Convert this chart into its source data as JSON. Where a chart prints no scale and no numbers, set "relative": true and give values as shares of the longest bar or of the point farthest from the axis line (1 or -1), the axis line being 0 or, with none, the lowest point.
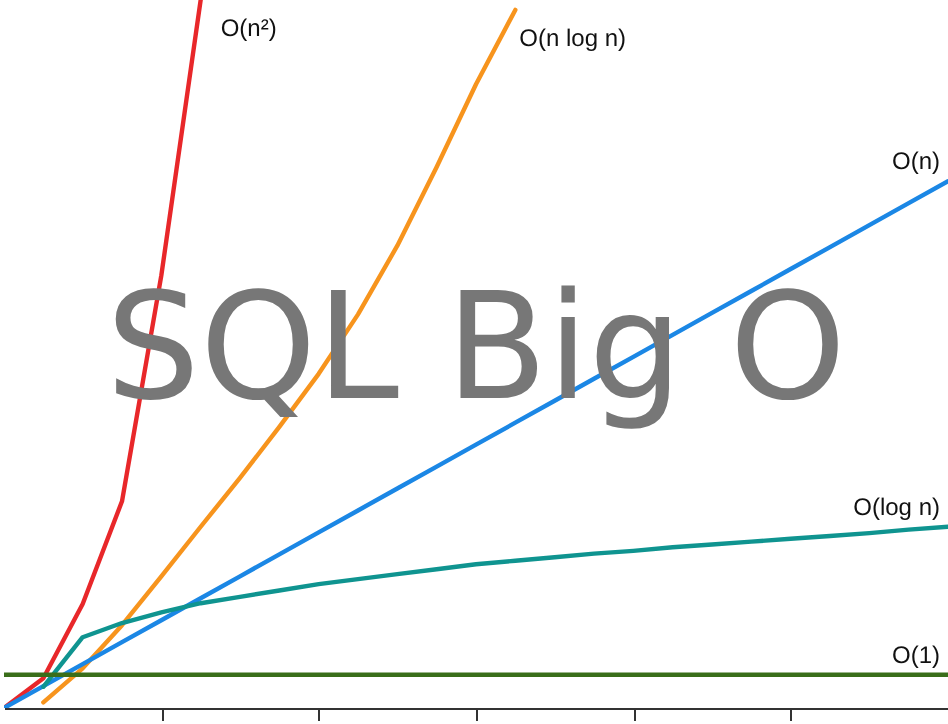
{
  "chart_data": {
    "type": "line",
    "title": "SQL Big O",
    "relative": true,
    "grid": false,
    "tick_labels": false,
    "categories": [
      null,
      null,
      null,
      null,
      null,
      null,
      null,
      null,
      null,
      null,
      null,
      null,
      null,
      null,
      null,
      null,
      null,
      null,
      null,
      null,
      null,
      null,
      null,
      null,
      null
    ],
    "series": [
      {
        "name": "O(n²)",
        "color": "#e8272a",
        "values": [
          0,
          0.042,
          0.147,
          0.292,
          0.611,
          1,
          null,
          null,
          null,
          null,
          null,
          null,
          null,
          null,
          null,
          null,
          null,
          null,
          null,
          null,
          null,
          null,
          null,
          null,
          null
        ]
      },
      {
        "name": "O(n log n)",
        "color": "#f7941d",
        "values": [
          null,
          0.008,
          0.056,
          0.117,
          0.186,
          0.256,
          0.325,
          0.397,
          0.472,
          0.556,
          0.653,
          0.764,
          0.881,
          0.986,
          null,
          null,
          null,
          null,
          null,
          null,
          null,
          null,
          null,
          null,
          null
        ]
      },
      {
        "name": "O(n)",
        "color": "#1b87e5",
        "values": [
          0,
          0.031,
          0.062,
          0.093,
          0.124,
          0.155,
          0.186,
          0.217,
          0.248,
          0.279,
          0.31,
          0.341,
          0.372,
          0.403,
          0.434,
          0.465,
          0.496,
          0.527,
          0.558,
          0.589,
          0.62,
          0.651,
          0.682,
          0.713,
          0.744
        ]
      },
      {
        "name": "O(log n)",
        "color": "#0f9490",
        "values": [
          null,
          0.03,
          0.1,
          0.12,
          0.135,
          0.148,
          0.157,
          0.166,
          0.175,
          0.182,
          0.189,
          0.196,
          0.203,
          0.208,
          0.213,
          0.218,
          0.222,
          0.227,
          0.231,
          0.235,
          0.239,
          0.243,
          0.247,
          0.252,
          0.256
        ]
      },
      {
        "name": "O(1)",
        "color": "#3a6e1a",
        "values": [
          0.047,
          0.047,
          0.047,
          0.047,
          0.047,
          0.047,
          0.047,
          0.047,
          0.047,
          0.047,
          0.047,
          0.047,
          0.047,
          0.047,
          0.047,
          0.047,
          0.047,
          0.047,
          0.047,
          0.047,
          0.047,
          0.047,
          0.047,
          0.047,
          0.047
        ]
      }
    ]
  }
}
